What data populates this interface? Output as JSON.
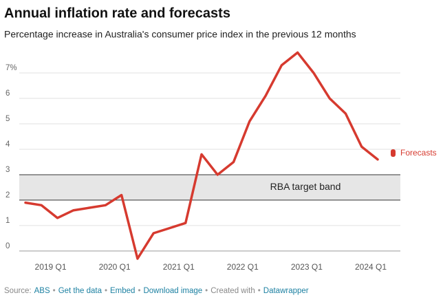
{
  "chart_data": {
    "type": "line",
    "title": "Annual inflation rate and forecasts",
    "subtitle": "Percentage increase in Australia's consumer price index in the previous 12 months",
    "categories": [
      null,
      null,
      "2019 Q1",
      null,
      null,
      null,
      "2020 Q1",
      null,
      null,
      null,
      "2021 Q1",
      null,
      null,
      null,
      "2022 Q1",
      null,
      null,
      null,
      "2023 Q1",
      null,
      null,
      null,
      "2024 Q1"
    ],
    "series": [
      {
        "color": "#d63a2f",
        "values": [
          1.9,
          1.8,
          1.3,
          1.6,
          1.7,
          1.8,
          2.2,
          -0.3,
          0.7,
          0.9,
          1.1,
          3.8,
          3.0,
          3.5,
          5.1,
          6.1,
          7.3,
          7.8,
          7.0,
          6.0,
          5.4,
          4.1,
          3.6
        ]
      }
    ],
    "ylim": [
      -0.3,
      7.8
    ],
    "yticks": [
      0,
      1,
      2,
      3,
      4,
      5,
      6,
      {
        "value": 7,
        "label": "7%"
      }
    ],
    "grid": true,
    "band": {
      "label": "RBA target band",
      "range": [
        2,
        3
      ],
      "color": "#e6e6e6"
    },
    "forecast_label": "Forecasts",
    "footer": {
      "separator": "•",
      "items": [
        {
          "text": "Source:",
          "link": false
        },
        {
          "text": "ABS",
          "link": true
        },
        {
          "text": "Get the data",
          "link": true
        },
        {
          "text": "Embed",
          "link": true
        },
        {
          "text": "Download image",
          "link": true
        },
        {
          "text": "Created with",
          "link": false
        },
        {
          "text": "Datawrapper",
          "link": true
        }
      ]
    }
  }
}
